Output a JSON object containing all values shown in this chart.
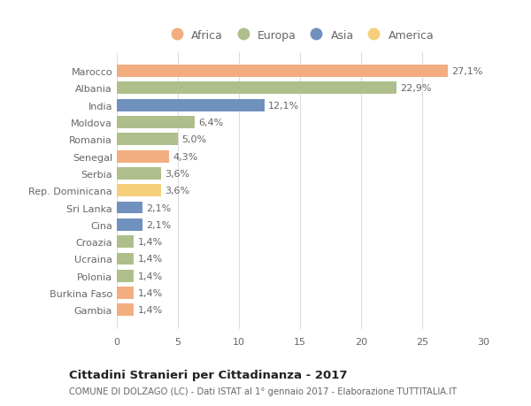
{
  "countries": [
    "Marocco",
    "Albania",
    "India",
    "Moldova",
    "Romania",
    "Senegal",
    "Serbia",
    "Rep. Dominicana",
    "Sri Lanka",
    "Cina",
    "Croazia",
    "Ucraina",
    "Polonia",
    "Burkina Faso",
    "Gambia"
  ],
  "values": [
    27.1,
    22.9,
    12.1,
    6.4,
    5.0,
    4.3,
    3.6,
    3.6,
    2.1,
    2.1,
    1.4,
    1.4,
    1.4,
    1.4,
    1.4
  ],
  "labels": [
    "27,1%",
    "22,9%",
    "12,1%",
    "6,4%",
    "5,0%",
    "4,3%",
    "3,6%",
    "3,6%",
    "2,1%",
    "2,1%",
    "1,4%",
    "1,4%",
    "1,4%",
    "1,4%",
    "1,4%"
  ],
  "continents": [
    "Africa",
    "Europa",
    "Asia",
    "Europa",
    "Europa",
    "Africa",
    "Europa",
    "America",
    "Asia",
    "Asia",
    "Europa",
    "Europa",
    "Europa",
    "Africa",
    "Africa"
  ],
  "colors": {
    "Africa": "#F2AE80",
    "Europa": "#AEBF8C",
    "Asia": "#7090BE",
    "America": "#F5CF7A"
  },
  "legend_order": [
    "Africa",
    "Europa",
    "Asia",
    "America"
  ],
  "title": "Cittadini Stranieri per Cittadinanza - 2017",
  "subtitle": "COMUNE DI DOLZAGO (LC) - Dati ISTAT al 1° gennaio 2017 - Elaborazione TUTTITALIA.IT",
  "xlim": [
    0,
    30
  ],
  "xticks": [
    0,
    5,
    10,
    15,
    20,
    25,
    30
  ],
  "background_color": "#ffffff",
  "bar_height": 0.72,
  "grid_color": "#dddddd",
  "text_color": "#666666",
  "title_color": "#222222",
  "subtitle_color": "#666666",
  "label_fontsize": 8,
  "ytick_fontsize": 8,
  "xtick_fontsize": 8
}
